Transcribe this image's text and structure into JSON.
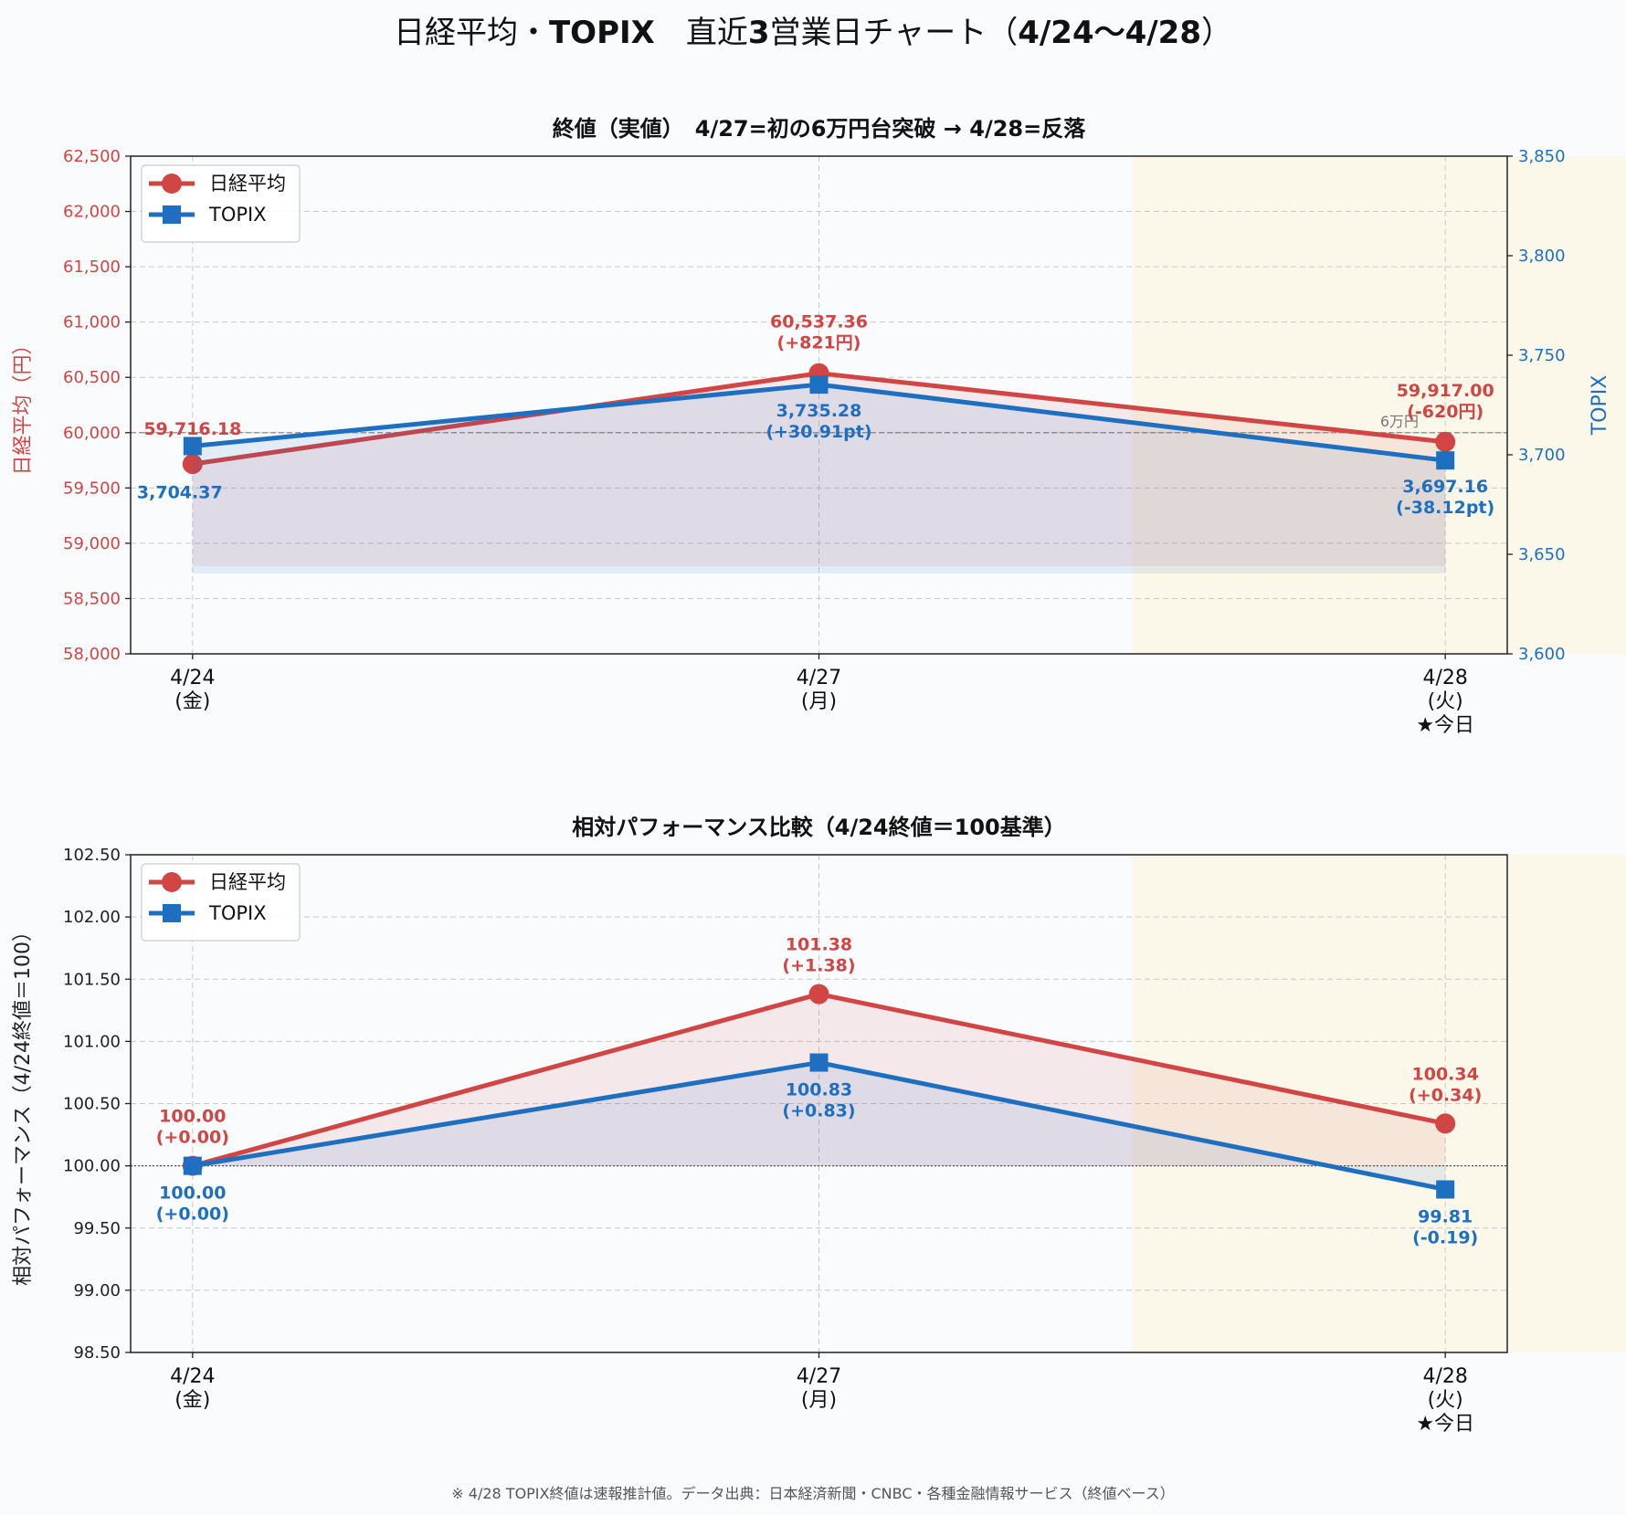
{
  "title": "日経平均・TOPIX　直近3営業日チャート（4/24〜4/28）",
  "footnote": "※ 4/28 TOPIX終値は速報推計値。データ出典：日本経済新聞・CNBC・各種金融情報サービス（終値ベース）",
  "colors": {
    "nikkei": "#d14545",
    "topix": "#1f6fc0",
    "highlight": "#fbf8ea",
    "background": "#f9fbfd"
  },
  "chart_data": [
    {
      "type": "line",
      "title": "終値（実値）　4/27=初の6万円台突破 → 4/28=反落",
      "x": [
        "4/24",
        "4/27",
        "4/28"
      ],
      "x_tick_labels": [
        [
          "4/24",
          "(金)"
        ],
        [
          "4/27",
          "(月)"
        ],
        [
          "4/28",
          "(火)",
          "★今日"
        ]
      ],
      "ylabel_left": "日経平均（円）",
      "ylabel_right": "TOPIX",
      "ylim_left": [
        58000,
        62500
      ],
      "ylim_right": [
        3600,
        3850
      ],
      "y_ticks_left": [
        "58,000",
        "58,500",
        "59,000",
        "59,500",
        "60,000",
        "60,500",
        "61,000",
        "61,500",
        "62,000",
        "62,500"
      ],
      "y_ticks_right": [
        "3,600",
        "3,650",
        "3,700",
        "3,750",
        "3,800",
        "3,850"
      ],
      "grid": true,
      "legend": "top-left",
      "highlight_region": "4/28",
      "reference_line": {
        "value": 60000,
        "axis": "left",
        "label": "6万円"
      },
      "series": [
        {
          "name": "日経平均",
          "axis": "left",
          "marker": "circle",
          "values": [
            59716.18,
            60537.36,
            59917.0
          ],
          "labels": [
            [
              "59,716.18"
            ],
            [
              "60,537.36",
              "(+821円)"
            ],
            [
              "59,917.00",
              "(-620円)"
            ]
          ]
        },
        {
          "name": "TOPIX",
          "axis": "right",
          "marker": "square",
          "values": [
            3704.37,
            3735.28,
            3697.16
          ],
          "labels": [
            [
              "3,704.37"
            ],
            [
              "3,735.28",
              "(+30.91pt)"
            ],
            [
              "3,697.16",
              "(-38.12pt)"
            ]
          ]
        }
      ]
    },
    {
      "type": "line",
      "title": "相対パフォーマンス比較（4/24終値＝100基準）",
      "x": [
        "4/24",
        "4/27",
        "4/28"
      ],
      "x_tick_labels": [
        [
          "4/24",
          "(金)"
        ],
        [
          "4/27",
          "(月)"
        ],
        [
          "4/28",
          "(火)",
          "★今日"
        ]
      ],
      "ylabel": "相対パフォーマンス（4/24終値＝100）",
      "ylim": [
        98.5,
        102.5
      ],
      "y_ticks": [
        "98.50",
        "99.00",
        "99.50",
        "100.00",
        "100.50",
        "101.00",
        "101.50",
        "102.00",
        "102.50"
      ],
      "grid": true,
      "legend": "top-left",
      "highlight_region": "4/28",
      "reference_line": {
        "value": 100
      },
      "series": [
        {
          "name": "日経平均",
          "marker": "circle",
          "values": [
            100.0,
            101.38,
            100.34
          ],
          "labels": [
            [
              "100.00",
              "(+0.00)"
            ],
            [
              "101.38",
              "(+1.38)"
            ],
            [
              "100.34",
              "(+0.34)"
            ]
          ]
        },
        {
          "name": "TOPIX",
          "marker": "square",
          "values": [
            100.0,
            100.83,
            99.81
          ],
          "labels": [
            [
              "100.00",
              "(+0.00)"
            ],
            [
              "100.83",
              "(+0.83)"
            ],
            [
              "99.81",
              "(-0.19)"
            ]
          ]
        }
      ]
    }
  ]
}
